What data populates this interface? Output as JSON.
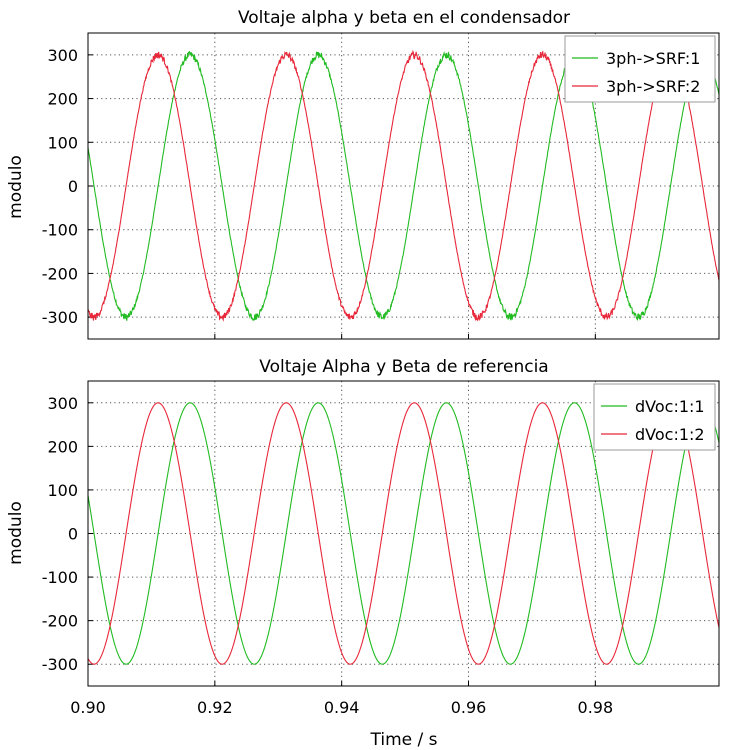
{
  "chart_data": [
    {
      "type": "line",
      "title": "Voltaje alpha y beta en el condensador",
      "xlabel": "",
      "ylabel": "modulo",
      "xlim": [
        0.9,
        0.9995
      ],
      "ylim": [
        -350,
        350
      ],
      "yticks": [
        300,
        200,
        100,
        0,
        -100,
        -200,
        -300
      ],
      "ytick_labels": [
        "300",
        "200",
        "100",
        "0",
        "-100",
        "-200",
        "-300"
      ],
      "grid": true,
      "legend_position": "top-right",
      "frequency_hz": 49.5,
      "series": [
        {
          "name": "3ph->SRF:1",
          "color": "#22bb22",
          "amplitude": 300,
          "phase_deg": -35,
          "noisy": true
        },
        {
          "name": "3ph->SRF:2",
          "color": "#e8283a",
          "amplitude": 300,
          "phase_deg": 55,
          "noisy": true
        }
      ]
    },
    {
      "type": "line",
      "title": "Voltaje Alpha y Beta de referencia",
      "xlabel": "Time / s",
      "ylabel": "modulo",
      "xlim": [
        0.9,
        0.9995
      ],
      "ylim": [
        -350,
        350
      ],
      "xticks": [
        0.9,
        0.92,
        0.94,
        0.96,
        0.98
      ],
      "xtick_labels": [
        "0.90",
        "0.92",
        "0.94",
        "0.96",
        "0.98"
      ],
      "yticks": [
        300,
        200,
        100,
        0,
        -100,
        -200,
        -300
      ],
      "ytick_labels": [
        "300",
        "200",
        "100",
        "0",
        "-100",
        "-200",
        "-300"
      ],
      "grid": true,
      "legend_position": "top-right",
      "frequency_hz": 49.5,
      "series": [
        {
          "name": "dVoc:1:1",
          "color": "#22bb22",
          "amplitude": 300,
          "phase_deg": -35,
          "noisy": false
        },
        {
          "name": "dVoc:1:2",
          "color": "#e8283a",
          "amplitude": 300,
          "phase_deg": 55,
          "noisy": false
        }
      ]
    }
  ]
}
